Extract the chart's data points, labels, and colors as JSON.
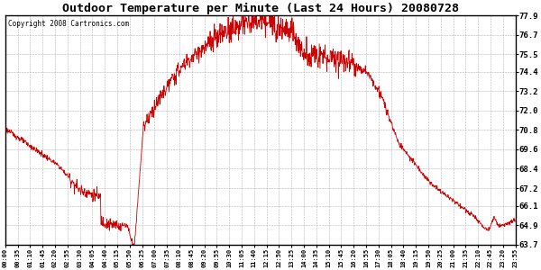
{
  "title": "Outdoor Temperature per Minute (Last 24 Hours) 20080728",
  "copyright": "Copyright 2008 Cartronics.com",
  "line_color": "#cc0000",
  "background_color": "#ffffff",
  "grid_color": "#aaaaaa",
  "ylim": [
    63.7,
    77.9
  ],
  "yticks": [
    63.7,
    64.9,
    66.1,
    67.2,
    68.4,
    69.6,
    70.8,
    72.0,
    73.2,
    74.4,
    75.5,
    76.7,
    77.9
  ],
  "xtick_labels": [
    "00:00",
    "00:35",
    "01:10",
    "01:45",
    "02:20",
    "02:55",
    "03:30",
    "04:05",
    "04:40",
    "05:15",
    "05:50",
    "06:25",
    "07:00",
    "07:35",
    "08:10",
    "08:45",
    "09:20",
    "09:55",
    "10:30",
    "11:05",
    "11:40",
    "12:15",
    "12:50",
    "13:25",
    "14:00",
    "14:35",
    "15:10",
    "15:45",
    "16:20",
    "16:55",
    "17:30",
    "18:05",
    "18:40",
    "19:15",
    "19:50",
    "20:25",
    "21:00",
    "21:35",
    "22:10",
    "22:45",
    "23:20",
    "23:55"
  ],
  "n_minutes": 1440,
  "control_points": [
    [
      0,
      70.8
    ],
    [
      30,
      70.5
    ],
    [
      90,
      69.8
    ],
    [
      120,
      69.2
    ],
    [
      155,
      68.4
    ],
    [
      180,
      68.0
    ],
    [
      210,
      67.5
    ],
    [
      240,
      67.1
    ],
    [
      260,
      66.6
    ],
    [
      290,
      65.8
    ],
    [
      315,
      65.2
    ],
    [
      315,
      65.2
    ],
    [
      330,
      65.0
    ],
    [
      340,
      65.1
    ],
    [
      350,
      64.9
    ],
    [
      360,
      65.0
    ],
    [
      375,
      64.9
    ],
    [
      330,
      65.0
    ],
    [
      345,
      64.95
    ],
    [
      360,
      65.0
    ],
    [
      375,
      64.9
    ],
    [
      390,
      63.7
    ],
    [
      395,
      63.75
    ],
    [
      385,
      63.7
    ],
    [
      385,
      63.7
    ],
    [
      425,
      71.2
    ],
    [
      445,
      72.0
    ],
    [
      470,
      73.2
    ],
    [
      490,
      74.0
    ],
    [
      510,
      74.5
    ],
    [
      525,
      74.8
    ],
    [
      540,
      75.2
    ],
    [
      555,
      75.5
    ],
    [
      570,
      75.4
    ],
    [
      585,
      75.6
    ],
    [
      600,
      75.8
    ],
    [
      615,
      76.1
    ],
    [
      630,
      76.3
    ],
    [
      645,
      76.5
    ],
    [
      660,
      76.7
    ],
    [
      675,
      77.0
    ],
    [
      690,
      77.2
    ],
    [
      705,
      77.4
    ],
    [
      720,
      77.2
    ],
    [
      735,
      77.0
    ],
    [
      750,
      76.8
    ],
    [
      765,
      76.9
    ],
    [
      780,
      77.1
    ],
    [
      795,
      77.5
    ],
    [
      810,
      77.3
    ],
    [
      825,
      76.8
    ],
    [
      840,
      76.5
    ],
    [
      855,
      76.2
    ],
    [
      870,
      75.9
    ],
    [
      885,
      75.7
    ],
    [
      900,
      75.6
    ],
    [
      915,
      75.5
    ],
    [
      930,
      75.4
    ],
    [
      945,
      75.3
    ],
    [
      960,
      75.2
    ],
    [
      975,
      75.5
    ],
    [
      990,
      75.3
    ],
    [
      1005,
      75.1
    ],
    [
      1020,
      74.8
    ],
    [
      1035,
      74.5
    ],
    [
      1050,
      74.2
    ],
    [
      1065,
      73.8
    ],
    [
      1080,
      73.0
    ],
    [
      1095,
      72.0
    ],
    [
      1110,
      71.0
    ],
    [
      1125,
      70.0
    ],
    [
      1140,
      69.0
    ],
    [
      1155,
      68.0
    ],
    [
      1170,
      67.5
    ],
    [
      1185,
      67.0
    ],
    [
      1200,
      66.8
    ],
    [
      1215,
      66.5
    ],
    [
      1230,
      66.3
    ],
    [
      1245,
      66.2
    ],
    [
      1260,
      66.1
    ],
    [
      1275,
      65.5
    ],
    [
      1290,
      65.0
    ],
    [
      1305,
      64.9
    ],
    [
      1320,
      65.3
    ],
    [
      1335,
      65.5
    ],
    [
      1350,
      65.2
    ],
    [
      1365,
      65.0
    ],
    [
      1380,
      65.1
    ],
    [
      1395,
      65.2
    ],
    [
      1410,
      65.0
    ],
    [
      1425,
      65.1
    ],
    [
      1439,
      65.2
    ]
  ]
}
